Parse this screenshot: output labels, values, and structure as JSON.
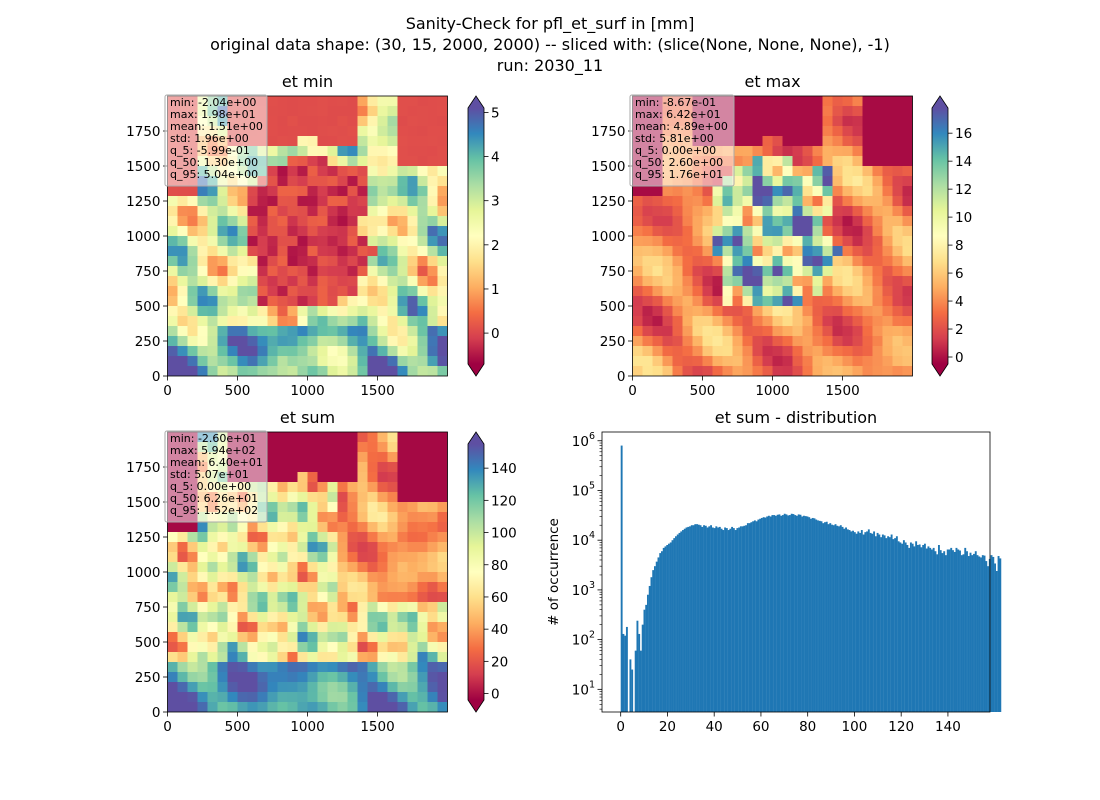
{
  "suptitle": [
    "Sanity-Check for pfl_et_surf in [mm]",
    "original data shape: (30, 15, 2000, 2000) -- sliced with: (slice(None, None, None), -1)",
    "run: 2030_11"
  ],
  "colormap": {
    "name": "Spectral",
    "stops": [
      "#9e0142",
      "#d53e4f",
      "#f46d43",
      "#fdae61",
      "#fee08b",
      "#ffffbf",
      "#e6f598",
      "#abdda4",
      "#66c2a5",
      "#3288bd",
      "#5e4fa2"
    ]
  },
  "hist_color": "#1f77b4",
  "panels": [
    {
      "title": "et min",
      "xticks": [
        "0",
        "500",
        "1000",
        "1500"
      ],
      "yticks": [
        "0",
        "250",
        "500",
        "750",
        "1000",
        "1250",
        "1500",
        "1750"
      ],
      "colorbar": {
        "vmin": -0.7,
        "vmax": 5.1,
        "ticks": [
          "0",
          "1",
          "2",
          "3",
          "4",
          "5"
        ]
      },
      "stats": [
        "min: -2.04e+00",
        "max: 1.98e+01",
        "mean: 1.51e+00",
        "std: 1.96e+00",
        "q_5: -5.99e-01",
        "q_50: 1.30e+00",
        "q_95: 5.04e+00"
      ]
    },
    {
      "title": "et max",
      "xticks": [
        "0",
        "500",
        "1000",
        "1500"
      ],
      "yticks": [
        "0",
        "250",
        "500",
        "750",
        "1000",
        "1250",
        "1500",
        "1750"
      ],
      "colorbar": {
        "vmin": -0.5,
        "vmax": 17.8,
        "ticks": [
          "0",
          "2",
          "4",
          "6",
          "8",
          "10",
          "12",
          "14",
          "16"
        ]
      },
      "stats": [
        "min: -8.67e-01",
        "max: 6.42e+01",
        "mean: 4.89e+00",
        "std: 5.81e+00",
        "q_5: 0.00e+00",
        "q_50: 2.60e+00",
        "q_95: 1.76e+01"
      ]
    },
    {
      "title": "et sum",
      "xticks": [
        "0",
        "500",
        "1000",
        "1500"
      ],
      "yticks": [
        "0",
        "250",
        "500",
        "750",
        "1000",
        "1250",
        "1500",
        "1750"
      ],
      "colorbar": {
        "vmin": -4,
        "vmax": 155,
        "ticks": [
          "0",
          "20",
          "40",
          "60",
          "80",
          "100",
          "120",
          "140"
        ]
      },
      "stats": [
        "min: -2.60e+01",
        "max: 5.94e+02",
        "mean: 6.40e+01",
        "std: 5.07e+01",
        "q_5: 0.00e+00",
        "q_50: 6.26e+01",
        "q_95: 1.52e+02"
      ]
    }
  ],
  "chart_data": [
    {
      "type": "heatmap",
      "title": "et min",
      "xlim": [
        0,
        2000
      ],
      "ylim": [
        0,
        2000
      ],
      "clim": [
        -0.7,
        5.1
      ],
      "colormap": "Spectral"
    },
    {
      "type": "heatmap",
      "title": "et max",
      "xlim": [
        0,
        2000
      ],
      "ylim": [
        0,
        2000
      ],
      "clim": [
        -0.5,
        17.8
      ],
      "colormap": "Spectral"
    },
    {
      "type": "heatmap",
      "title": "et sum",
      "xlim": [
        0,
        2000
      ],
      "ylim": [
        0,
        2000
      ],
      "clim": [
        -4,
        155
      ],
      "colormap": "Spectral"
    },
    {
      "type": "bar",
      "title": "et sum - distribution",
      "ylabel": "# of occurrence",
      "xlabel": "",
      "yscale": "log",
      "xlim": [
        -8,
        158
      ],
      "ylim": [
        3.5,
        1500000
      ],
      "xticks": [
        0,
        20,
        40,
        60,
        80,
        100,
        120,
        140
      ],
      "yticks": [
        "10^1",
        "10^2",
        "10^3",
        "10^4",
        "10^5",
        "10^6"
      ],
      "bins": {
        "start": 0,
        "width": 0.75
      },
      "values": [
        800000,
        130,
        120,
        180,
        0,
        40,
        25,
        0,
        60,
        240,
        130,
        60,
        200,
        400,
        500,
        800,
        1200,
        1800,
        2500,
        3000,
        3700,
        4500,
        5500,
        6000,
        7000,
        7500,
        8000,
        8500,
        9000,
        10000,
        11000,
        12000,
        13000,
        14000,
        15000,
        16000,
        17000,
        18000,
        18500,
        19000,
        20000,
        20000,
        21000,
        21000,
        20500,
        20000,
        18500,
        20000,
        19500,
        18000,
        19000,
        20000,
        18000,
        17500,
        19000,
        18000,
        18500,
        17000,
        16000,
        18000,
        17500,
        16000,
        17000,
        18500,
        17500,
        16000,
        17500,
        18000,
        19000,
        19000,
        19500,
        20000,
        22000,
        22000,
        23000,
        24000,
        25000,
        24000,
        26000,
        27000,
        28000,
        29000,
        28500,
        30000,
        31000,
        30000,
        32000,
        32000,
        31000,
        32500,
        33000,
        31000,
        32000,
        34000,
        33000,
        31500,
        32000,
        34000,
        33500,
        32000,
        31000,
        33000,
        32500,
        30000,
        31000,
        30500,
        30000,
        29000,
        27000,
        28000,
        27500,
        26000,
        25000,
        24500,
        24000,
        22000,
        23000,
        23500,
        21000,
        22000,
        20500,
        20000,
        21000,
        19500,
        19000,
        20000,
        18500,
        17000,
        18000,
        16500,
        16000,
        15000,
        15500,
        14500,
        13500,
        15000,
        14000,
        16000,
        13000,
        14500,
        15000,
        16500,
        14000,
        13500,
        15000,
        12000,
        14000,
        13000,
        11500,
        13000,
        12500,
        11000,
        12000,
        11500,
        13000,
        10500,
        11000,
        12000,
        9500,
        9000,
        8500,
        10000,
        9000,
        8000,
        7000,
        9000,
        8500,
        7500,
        9500,
        8000,
        8200,
        7200,
        8000,
        8500,
        6800,
        7500,
        7000,
        6500,
        7000,
        6000,
        5200,
        8000,
        6300,
        5500,
        6000,
        5000,
        6500,
        6500,
        7000,
        6300,
        5800,
        7000,
        6500,
        6200,
        5000,
        5200,
        7000,
        6000,
        4800,
        5600,
        5000,
        5300,
        6000,
        5000,
        4700,
        4500,
        5000,
        4900,
        3800,
        3000,
        4200,
        5000,
        4600,
        3400,
        2400,
        4800,
        4300
      ]
    }
  ]
}
